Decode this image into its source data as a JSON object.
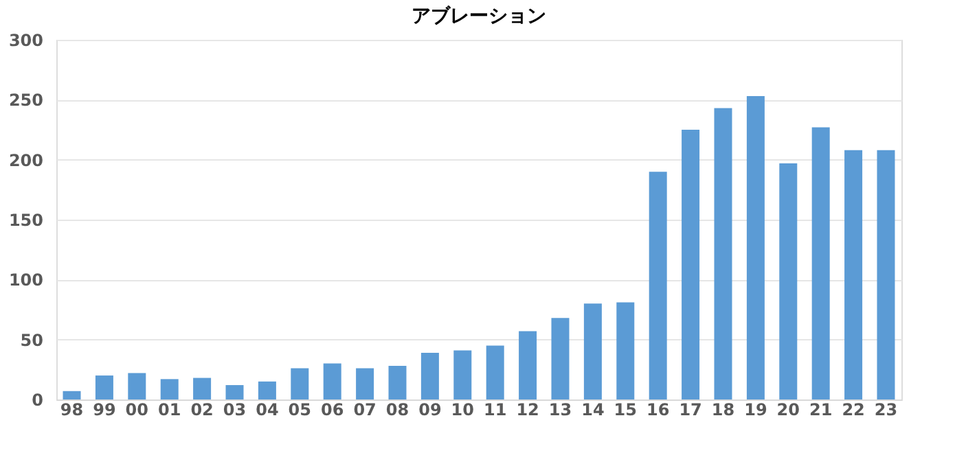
{
  "chart_data": {
    "type": "bar",
    "title": "アブレーション",
    "categories": [
      "98",
      "99",
      "00",
      "01",
      "02",
      "03",
      "04",
      "05",
      "06",
      "07",
      "08",
      "09",
      "10",
      "11",
      "12",
      "13",
      "14",
      "15",
      "16",
      "17",
      "18",
      "19",
      "20",
      "21",
      "22",
      "23"
    ],
    "values": [
      7,
      20,
      22,
      17,
      18,
      12,
      15,
      26,
      30,
      26,
      28,
      39,
      41,
      45,
      57,
      68,
      80,
      81,
      190,
      225,
      243,
      253,
      197,
      227,
      208,
      208
    ],
    "color": "#5b9bd5",
    "ylim": [
      0,
      300
    ],
    "yticks": [
      0,
      50,
      100,
      150,
      200,
      250,
      300
    ],
    "grid": "y"
  }
}
